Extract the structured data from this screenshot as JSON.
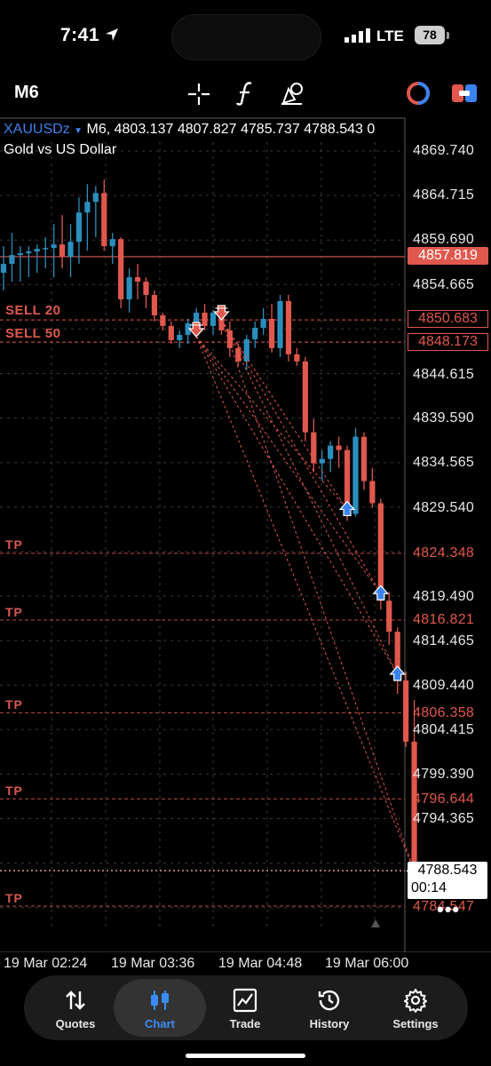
{
  "status_bar": {
    "time": "7:41",
    "network": "LTE",
    "battery": "78"
  },
  "toolbar": {
    "timeframe": "M6"
  },
  "chart_header": {
    "symbol": "XAUUSDz",
    "timeframe": "M6",
    "open": "4803.137",
    "high": "4807.827",
    "low": "4785.737",
    "close": "4788.543",
    "extra": "0",
    "description": "Gold vs US Dollar"
  },
  "y_axis_labels": [
    "4869.740",
    "4864.715",
    "4859.690",
    "4854.665",
    "4844.615",
    "4839.590",
    "4834.565",
    "4829.540",
    "4819.490",
    "4814.465",
    "4809.440",
    "4804.415",
    "4799.390",
    "4794.365"
  ],
  "price_lines": {
    "bid": "4857.819",
    "sell_20": {
      "label": "SELL 20",
      "price": "4850.683"
    },
    "sell_50": {
      "label": "SELL 50",
      "price": "4848.173"
    },
    "tp": [
      {
        "label": "TP",
        "price": "4824.348"
      },
      {
        "label": "TP",
        "price": "4816.821"
      },
      {
        "label": "TP",
        "price": "4806.358"
      },
      {
        "label": "TP",
        "price": "4796.644"
      },
      {
        "label": "TP",
        "price": "4784.547"
      }
    ],
    "current": "4788.543",
    "countdown": "00:14"
  },
  "x_axis_labels": [
    "19 Mar 02:24",
    "19 Mar 03:36",
    "19 Mar 04:48",
    "19 Mar 06:00"
  ],
  "colors": {
    "bull": "#2a8fbd",
    "bear": "#e0584d",
    "accent": "#3b83f0"
  },
  "chart_data": {
    "type": "candlestick",
    "symbol": "XAUUSDz",
    "timeframe": "M6",
    "x_labels": [
      "19 Mar 02:24",
      "19 Mar 03:36",
      "19 Mar 04:48",
      "19 Mar 06:00"
    ],
    "ylim": [
      4782,
      4872
    ],
    "candles": [
      {
        "o": 4856.0,
        "h": 4859.0,
        "l": 4854.0,
        "c": 4857.0
      },
      {
        "o": 4857.0,
        "h": 4860.5,
        "l": 4855.0,
        "c": 4858.0
      },
      {
        "o": 4858.0,
        "h": 4859.0,
        "l": 4855.0,
        "c": 4858.2
      },
      {
        "o": 4858.2,
        "h": 4859.0,
        "l": 4855.5,
        "c": 4858.4
      },
      {
        "o": 4858.4,
        "h": 4859.2,
        "l": 4856.0,
        "c": 4858.7
      },
      {
        "o": 4858.7,
        "h": 4860.0,
        "l": 4856.5,
        "c": 4858.8
      },
      {
        "o": 4858.8,
        "h": 4861.5,
        "l": 4855.5,
        "c": 4859.2
      },
      {
        "o": 4859.2,
        "h": 4862.5,
        "l": 4856.5,
        "c": 4857.8
      },
      {
        "o": 4857.8,
        "h": 4861.5,
        "l": 4855.5,
        "c": 4859.5
      },
      {
        "o": 4859.5,
        "h": 4864.5,
        "l": 4857.0,
        "c": 4862.8
      },
      {
        "o": 4862.8,
        "h": 4866.0,
        "l": 4858.5,
        "c": 4864.0
      },
      {
        "o": 4864.0,
        "h": 4865.8,
        "l": 4860.0,
        "c": 4865.0
      },
      {
        "o": 4865.0,
        "h": 4866.5,
        "l": 4858.5,
        "c": 4859.0
      },
      {
        "o": 4859.0,
        "h": 4860.5,
        "l": 4857.0,
        "c": 4859.8
      },
      {
        "o": 4859.8,
        "h": 4860.0,
        "l": 4852.0,
        "c": 4853.0
      },
      {
        "o": 4853.0,
        "h": 4856.5,
        "l": 4851.5,
        "c": 4855.5
      },
      {
        "o": 4855.5,
        "h": 4857.0,
        "l": 4853.0,
        "c": 4855.0
      },
      {
        "o": 4855.0,
        "h": 4855.5,
        "l": 4852.0,
        "c": 4853.5
      },
      {
        "o": 4853.5,
        "h": 4854.0,
        "l": 4850.5,
        "c": 4851.2
      },
      {
        "o": 4851.2,
        "h": 4851.5,
        "l": 4849.5,
        "c": 4850.0
      },
      {
        "o": 4850.0,
        "h": 4850.5,
        "l": 4848.0,
        "c": 4848.4
      },
      {
        "o": 4848.4,
        "h": 4849.5,
        "l": 4847.5,
        "c": 4849.0
      },
      {
        "o": 4849.0,
        "h": 4850.8,
        "l": 4848.0,
        "c": 4850.3
      },
      {
        "o": 4850.3,
        "h": 4852.0,
        "l": 4849.5,
        "c": 4851.5
      },
      {
        "o": 4851.5,
        "h": 4852.5,
        "l": 4849.5,
        "c": 4850.0
      },
      {
        "o": 4850.0,
        "h": 4851.8,
        "l": 4849.0,
        "c": 4851.5
      },
      {
        "o": 4851.5,
        "h": 4852.0,
        "l": 4849.0,
        "c": 4849.5
      },
      {
        "o": 4849.5,
        "h": 4850.5,
        "l": 4846.5,
        "c": 4847.5
      },
      {
        "o": 4847.5,
        "h": 4848.0,
        "l": 4845.5,
        "c": 4846.0
      },
      {
        "o": 4846.0,
        "h": 4849.0,
        "l": 4845.0,
        "c": 4848.5
      },
      {
        "o": 4848.5,
        "h": 4850.5,
        "l": 4847.5,
        "c": 4849.8
      },
      {
        "o": 4849.8,
        "h": 4852.0,
        "l": 4849.0,
        "c": 4850.8
      },
      {
        "o": 4850.8,
        "h": 4852.5,
        "l": 4847.0,
        "c": 4847.5
      },
      {
        "o": 4847.5,
        "h": 4853.5,
        "l": 4846.5,
        "c": 4852.8
      },
      {
        "o": 4852.8,
        "h": 4853.5,
        "l": 4846.0,
        "c": 4846.8
      },
      {
        "o": 4846.8,
        "h": 4847.5,
        "l": 4845.5,
        "c": 4846.0
      },
      {
        "o": 4846.0,
        "h": 4846.5,
        "l": 4837.0,
        "c": 4838.0
      },
      {
        "o": 4838.0,
        "h": 4839.5,
        "l": 4833.5,
        "c": 4834.5
      },
      {
        "o": 4834.5,
        "h": 4836.0,
        "l": 4832.5,
        "c": 4835.0
      },
      {
        "o": 4835.0,
        "h": 4837.0,
        "l": 4833.5,
        "c": 4836.5
      },
      {
        "o": 4836.5,
        "h": 4837.5,
        "l": 4834.0,
        "c": 4836.0
      },
      {
        "o": 4836.0,
        "h": 4836.5,
        "l": 4828.0,
        "c": 4828.8
      },
      {
        "o": 4828.8,
        "h": 4838.5,
        "l": 4828.5,
        "c": 4837.5
      },
      {
        "o": 4837.5,
        "h": 4838.0,
        "l": 4831.5,
        "c": 4832.5
      },
      {
        "o": 4832.5,
        "h": 4834.0,
        "l": 4829.5,
        "c": 4830.0
      },
      {
        "o": 4830.0,
        "h": 4830.5,
        "l": 4818.0,
        "c": 4819.0
      },
      {
        "o": 4819.0,
        "h": 4820.0,
        "l": 4814.0,
        "c": 4815.5
      },
      {
        "o": 4815.5,
        "h": 4816.0,
        "l": 4808.5,
        "c": 4810.0
      },
      {
        "o": 4810.0,
        "h": 4811.0,
        "l": 4802.5,
        "c": 4803.1
      },
      {
        "o": 4803.1,
        "h": 4807.8,
        "l": 4785.7,
        "c": 4788.5
      }
    ],
    "trades": {
      "sells": [
        {
          "at_candle": 23,
          "price": 4848.8,
          "lots": "SELL 50"
        },
        {
          "at_candle": 26,
          "price": 4850.7,
          "lots": "SELL 20"
        }
      ],
      "closes": [
        4829.3,
        4819.8,
        4810.7,
        4788.5
      ]
    }
  },
  "bottom_nav": [
    {
      "label": "Quotes",
      "active": false
    },
    {
      "label": "Chart",
      "active": true
    },
    {
      "label": "Trade",
      "active": false
    },
    {
      "label": "History",
      "active": false
    },
    {
      "label": "Settings",
      "active": false
    }
  ]
}
